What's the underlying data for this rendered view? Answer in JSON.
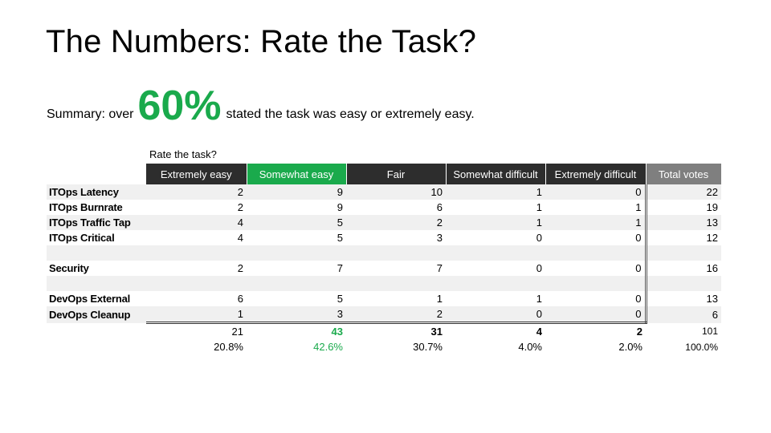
{
  "title": "The Numbers: Rate the Task?",
  "summary": {
    "prefix": "Summary: over",
    "highlight": "60%",
    "suffix": "stated the task was easy or extremely easy."
  },
  "colors": {
    "accent_green": "#1aaa4c",
    "header_dark": "#2d2d2d",
    "header_gray": "#7f7f7f"
  },
  "table": {
    "caption": "Rate the task?",
    "headers": [
      "Extremely easy",
      "Somewhat easy",
      "Fair",
      "Somewhat difficult",
      "Extremely difficult",
      "Total votes"
    ],
    "rows": [
      {
        "label": "ITOps Latency",
        "values": [
          "2",
          "9",
          "10",
          "1",
          "0",
          "22"
        ]
      },
      {
        "label": "ITOps Burnrate",
        "values": [
          "2",
          "9",
          "6",
          "1",
          "1",
          "19"
        ]
      },
      {
        "label": "ITOps Traffic Tap",
        "values": [
          "4",
          "5",
          "2",
          "1",
          "1",
          "13"
        ]
      },
      {
        "label": "ITOps Critical",
        "values": [
          "4",
          "5",
          "3",
          "0",
          "0",
          "12"
        ]
      },
      {
        "label": "",
        "values": [
          "",
          "",
          "",
          "",
          "",
          ""
        ]
      },
      {
        "label": "Security",
        "values": [
          "2",
          "7",
          "7",
          "0",
          "0",
          "16"
        ]
      },
      {
        "label": "",
        "values": [
          "",
          "",
          "",
          "",
          "",
          ""
        ]
      },
      {
        "label": "DevOps External",
        "values": [
          "6",
          "5",
          "1",
          "1",
          "0",
          "13"
        ]
      },
      {
        "label": "DevOps Cleanup",
        "values": [
          "1",
          "3",
          "2",
          "0",
          "0",
          "6"
        ]
      }
    ],
    "totals": [
      "21",
      "43",
      "31",
      "4",
      "2",
      "101"
    ],
    "percents": [
      "20.8%",
      "42.6%",
      "30.7%",
      "4.0%",
      "2.0%",
      "100.0%"
    ]
  }
}
